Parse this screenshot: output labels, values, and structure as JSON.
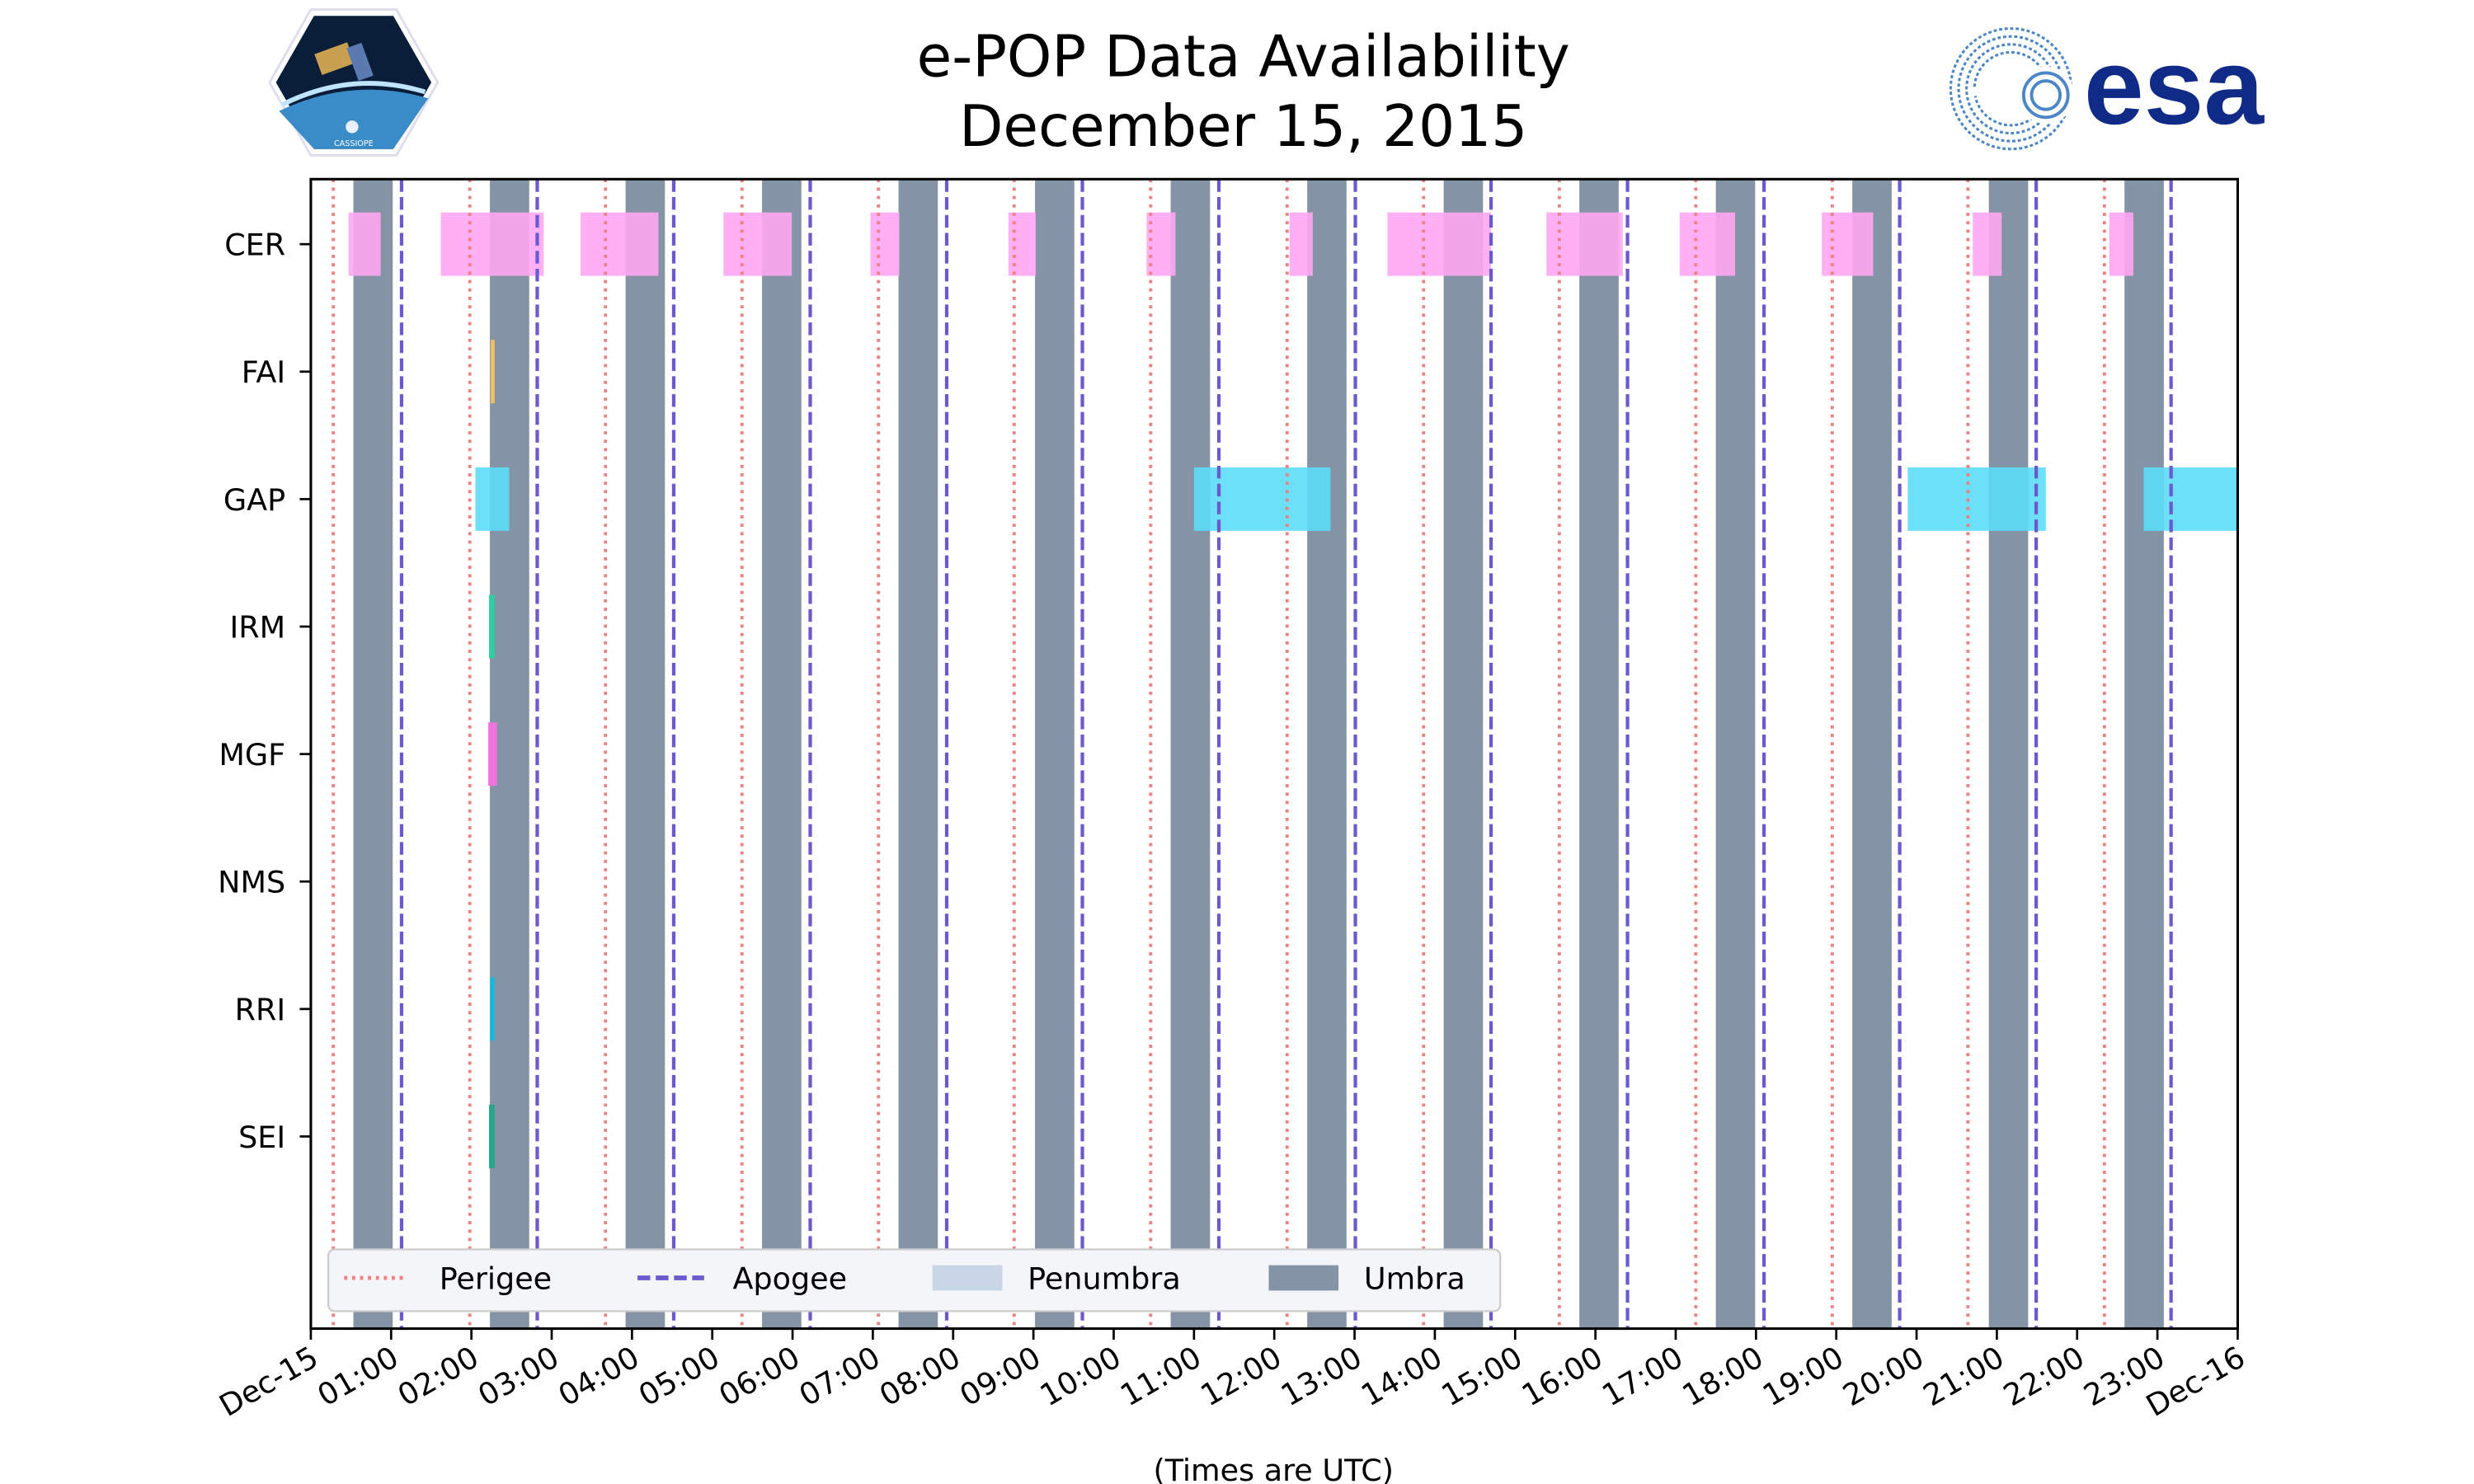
{
  "logos": {
    "left": {
      "name": "CASSIOPE",
      "text": "CASSIOPE"
    },
    "right": {
      "name": "esa",
      "text": "esa"
    }
  },
  "chart_data": {
    "type": "timeline",
    "title": "e-POP Data Availability",
    "subtitle": "December 15, 2015",
    "xlabel": "(Times are UTC)",
    "xlim_hours": [
      0,
      24
    ],
    "xticks": [
      "Dec-15",
      "01:00",
      "02:00",
      "03:00",
      "04:00",
      "05:00",
      "06:00",
      "07:00",
      "08:00",
      "09:00",
      "10:00",
      "11:00",
      "12:00",
      "13:00",
      "14:00",
      "15:00",
      "16:00",
      "17:00",
      "18:00",
      "19:00",
      "20:00",
      "21:00",
      "22:00",
      "23:00",
      "Dec-16"
    ],
    "rows": [
      "CER",
      "FAI",
      "GAP",
      "IRM",
      "MGF",
      "NMS",
      "RRI",
      "SEI"
    ],
    "perigee_hours": [
      0.28,
      1.98,
      3.67,
      5.37,
      7.07,
      8.76,
      10.46,
      12.16,
      13.86,
      15.55,
      17.25,
      18.95,
      20.64,
      22.34
    ],
    "apogee_hours": [
      1.13,
      2.82,
      4.52,
      6.22,
      7.92,
      9.61,
      11.31,
      13.01,
      14.7,
      16.4,
      18.1,
      19.79,
      21.49,
      23.17
    ],
    "umbra_intervals": [
      [
        0.53,
        1.02
      ],
      [
        2.23,
        2.72
      ],
      [
        3.92,
        4.41
      ],
      [
        5.62,
        6.11
      ],
      [
        7.32,
        7.81
      ],
      [
        9.02,
        9.51
      ],
      [
        10.71,
        11.2
      ],
      [
        12.41,
        12.9
      ],
      [
        14.11,
        14.6
      ],
      [
        15.8,
        16.29
      ],
      [
        17.5,
        17.99
      ],
      [
        19.2,
        19.69
      ],
      [
        20.9,
        21.39
      ],
      [
        22.59,
        23.08
      ]
    ],
    "instruments": [
      {
        "name": "CER",
        "color": "#ffa6f2",
        "intervals": [
          [
            0.47,
            0.87
          ],
          [
            1.62,
            2.9
          ],
          [
            3.36,
            4.33
          ],
          [
            5.14,
            5.99
          ],
          [
            6.97,
            7.33
          ],
          [
            8.69,
            9.03
          ],
          [
            10.41,
            10.77
          ],
          [
            12.19,
            12.48
          ],
          [
            13.41,
            14.7
          ],
          [
            15.39,
            16.34
          ],
          [
            17.05,
            17.74
          ],
          [
            18.82,
            19.46
          ],
          [
            20.7,
            21.06
          ],
          [
            22.4,
            22.7
          ]
        ]
      },
      {
        "name": "FAI",
        "color": "#eec060",
        "intervals": [
          [
            2.24,
            2.29
          ]
        ]
      },
      {
        "name": "GAP",
        "color": "#5cdcf8",
        "intervals": [
          [
            2.05,
            2.47
          ],
          [
            11.0,
            12.7
          ],
          [
            19.89,
            21.61
          ],
          [
            22.83,
            24.0
          ]
        ]
      },
      {
        "name": "IRM",
        "color": "#2dcf9f",
        "intervals": [
          [
            2.22,
            2.29
          ]
        ]
      },
      {
        "name": "MGF",
        "color": "#ec74dc",
        "intervals": [
          [
            2.21,
            2.32
          ]
        ]
      },
      {
        "name": "NMS",
        "color": "#888888",
        "intervals": []
      },
      {
        "name": "RRI",
        "color": "#1cb8dc",
        "intervals": [
          [
            2.23,
            2.29
          ]
        ]
      },
      {
        "name": "SEI",
        "color": "#22a887",
        "intervals": [
          [
            2.22,
            2.29
          ]
        ]
      }
    ],
    "legend": {
      "placement": "bottom-left",
      "entries": [
        {
          "label": "Perigee",
          "style": "dotted",
          "color": "#f08080"
        },
        {
          "label": "Apogee",
          "style": "dashed",
          "color": "#6a5acd"
        },
        {
          "label": "Penumbra",
          "style": "patch",
          "color": "#c8d6e5"
        },
        {
          "label": "Umbra",
          "style": "patch",
          "color": "#8494a6"
        }
      ]
    }
  }
}
